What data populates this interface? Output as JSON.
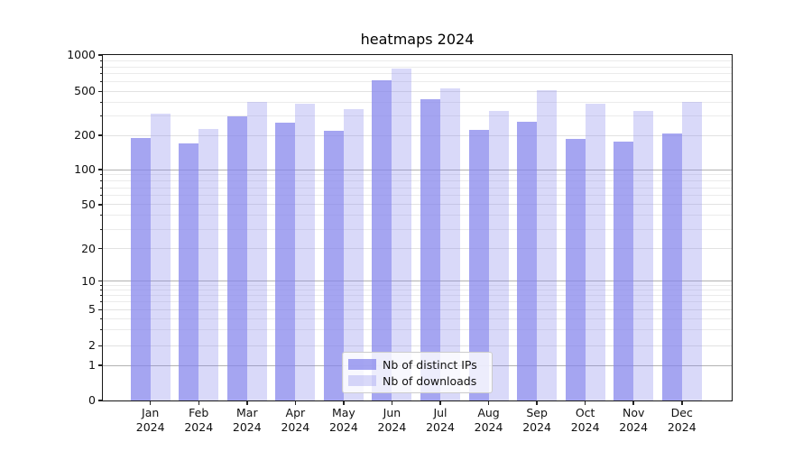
{
  "title": "heatmaps 2024",
  "chart_data": {
    "type": "bar",
    "title": "heatmaps 2024",
    "categories": [
      "Jan 2024",
      "Feb 2024",
      "Mar 2024",
      "Apr 2024",
      "May 2024",
      "Jun 2024",
      "Jul 2024",
      "Aug 2024",
      "Sep 2024",
      "Oct 2024",
      "Nov 2024",
      "Dec 2024"
    ],
    "series": [
      {
        "name": "Nb of distinct IPs",
        "values": [
          190,
          170,
          295,
          260,
          220,
          615,
          425,
          225,
          265,
          185,
          175,
          207
        ]
      },
      {
        "name": "Nb of downloads",
        "values": [
          315,
          230,
          400,
          390,
          345,
          770,
          535,
          330,
          515,
          390,
          335,
          405
        ]
      }
    ],
    "yscale": "symlog",
    "ylim": [
      0,
      1000
    ],
    "yticks": [
      0,
      1,
      2,
      5,
      10,
      20,
      50,
      100,
      200,
      500,
      1000
    ],
    "grid": true,
    "legend_position": "lower center"
  },
  "legend": {
    "items": [
      {
        "label": "Nb of distinct IPs",
        "color": "rgba(130,130,235,0.72)"
      },
      {
        "label": "Nb of downloads",
        "color": "rgba(130,130,235,0.30)"
      }
    ]
  },
  "colors": {
    "bar_distinct_ips": "rgba(130,130,235,0.72)",
    "bar_downloads": "rgba(130,130,235,0.30)",
    "grid_decade": "#b2b2b2",
    "grid_major": "#e2e2e2",
    "grid_minor": "#ebebeb",
    "axis": "#161616"
  }
}
